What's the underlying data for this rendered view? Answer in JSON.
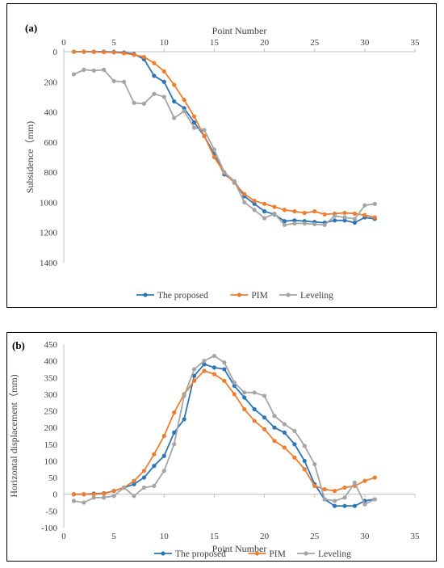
{
  "chart_data": [
    {
      "type": "line",
      "panel_label": "(a)",
      "title": "",
      "xlabel": "Point Number",
      "ylabel": "Subsidence（mm)",
      "xlim": [
        0,
        35
      ],
      "ylim": [
        0,
        1400
      ],
      "y_inverted": true,
      "x_axis_position": "top",
      "x_ticks": [
        0,
        5,
        10,
        15,
        20,
        25,
        30,
        35
      ],
      "y_ticks": [
        0,
        200,
        400,
        600,
        800,
        1000,
        1200,
        1400
      ],
      "grid": false,
      "legend_position": "bottom",
      "series": [
        {
          "name": "The proposed",
          "color": "#2e75b6",
          "x": [
            1,
            2,
            3,
            4,
            5,
            6,
            7,
            8,
            9,
            10,
            11,
            12,
            13,
            14,
            15,
            16,
            17,
            18,
            19,
            20,
            21,
            22,
            23,
            24,
            25,
            26,
            27,
            28,
            29,
            30,
            31
          ],
          "y": [
            0,
            0,
            0,
            0,
            2,
            5,
            15,
            50,
            160,
            200,
            330,
            375,
            470,
            560,
            680,
            815,
            860,
            960,
            1010,
            1060,
            1080,
            1125,
            1120,
            1125,
            1130,
            1135,
            1120,
            1120,
            1135,
            1100,
            1110
          ]
        },
        {
          "name": "PIM",
          "color": "#ed7d31",
          "x": [
            1,
            2,
            3,
            4,
            5,
            6,
            7,
            8,
            9,
            10,
            11,
            12,
            13,
            14,
            15,
            16,
            17,
            18,
            19,
            20,
            21,
            22,
            23,
            24,
            25,
            26,
            27,
            28,
            29,
            30,
            31
          ],
          "y": [
            0,
            0,
            2,
            3,
            5,
            10,
            20,
            35,
            75,
            130,
            220,
            320,
            430,
            560,
            700,
            805,
            870,
            945,
            990,
            1010,
            1030,
            1050,
            1060,
            1070,
            1060,
            1080,
            1075,
            1070,
            1075,
            1085,
            1100
          ]
        },
        {
          "name": "Leveling",
          "color": "#a5a5a5",
          "x": [
            1,
            2,
            3,
            4,
            5,
            6,
            7,
            8,
            9,
            10,
            11,
            12,
            13,
            14,
            15,
            16,
            17,
            18,
            19,
            20,
            21,
            22,
            23,
            24,
            25,
            26,
            27,
            28,
            29,
            30,
            31
          ],
          "y": [
            150,
            120,
            125,
            120,
            195,
            200,
            340,
            345,
            280,
            300,
            440,
            395,
            505,
            520,
            650,
            800,
            860,
            1000,
            1050,
            1105,
            1075,
            1150,
            1140,
            1140,
            1145,
            1150,
            1090,
            1100,
            1110,
            1020,
            1010
          ]
        }
      ]
    },
    {
      "type": "line",
      "panel_label": "(b)",
      "title": "",
      "xlabel": "Point Number",
      "ylabel": "Horizontal displacement（mm)",
      "xlim": [
        0,
        35
      ],
      "ylim": [
        -100,
        450
      ],
      "x_ticks": [
        0,
        5,
        10,
        15,
        20,
        25,
        30,
        35
      ],
      "y_ticks": [
        -100,
        -50,
        0,
        50,
        100,
        150,
        200,
        250,
        300,
        350,
        400,
        450
      ],
      "grid": false,
      "legend_position": "bottom",
      "series": [
        {
          "name": "The proposed",
          "color": "#2e75b6",
          "x": [
            1,
            2,
            3,
            4,
            5,
            6,
            7,
            8,
            9,
            10,
            11,
            12,
            13,
            14,
            15,
            16,
            17,
            18,
            19,
            20,
            21,
            22,
            23,
            24,
            25,
            26,
            27,
            28,
            29,
            30,
            31
          ],
          "y": [
            0,
            0,
            2,
            3,
            10,
            20,
            30,
            50,
            85,
            115,
            185,
            225,
            355,
            390,
            380,
            375,
            325,
            290,
            255,
            230,
            200,
            185,
            150,
            100,
            30,
            -15,
            -35,
            -35,
            -35,
            -20,
            -15
          ]
        },
        {
          "name": "PIM",
          "color": "#ed7d31",
          "x": [
            1,
            2,
            3,
            4,
            5,
            6,
            7,
            8,
            9,
            10,
            11,
            12,
            13,
            14,
            15,
            16,
            17,
            18,
            19,
            20,
            21,
            22,
            23,
            24,
            25,
            26,
            27,
            28,
            29,
            30,
            31
          ],
          "y": [
            0,
            0,
            0,
            2,
            10,
            20,
            40,
            70,
            120,
            175,
            245,
            300,
            340,
            370,
            360,
            340,
            300,
            255,
            220,
            195,
            160,
            140,
            110,
            75,
            25,
            15,
            10,
            20,
            25,
            40,
            50
          ]
        },
        {
          "name": "Leveling",
          "color": "#a5a5a5",
          "x": [
            1,
            2,
            3,
            4,
            5,
            6,
            7,
            8,
            9,
            10,
            11,
            12,
            13,
            14,
            15,
            16,
            17,
            18,
            19,
            20,
            21,
            22,
            23,
            24,
            25,
            26,
            27,
            28,
            29,
            30,
            31
          ],
          "y": [
            -20,
            -25,
            -10,
            -10,
            -5,
            20,
            -5,
            20,
            25,
            70,
            150,
            295,
            375,
            400,
            415,
            395,
            335,
            305,
            305,
            295,
            235,
            210,
            190,
            145,
            90,
            -15,
            -20,
            -10,
            35,
            -30,
            -15
          ]
        }
      ]
    }
  ]
}
